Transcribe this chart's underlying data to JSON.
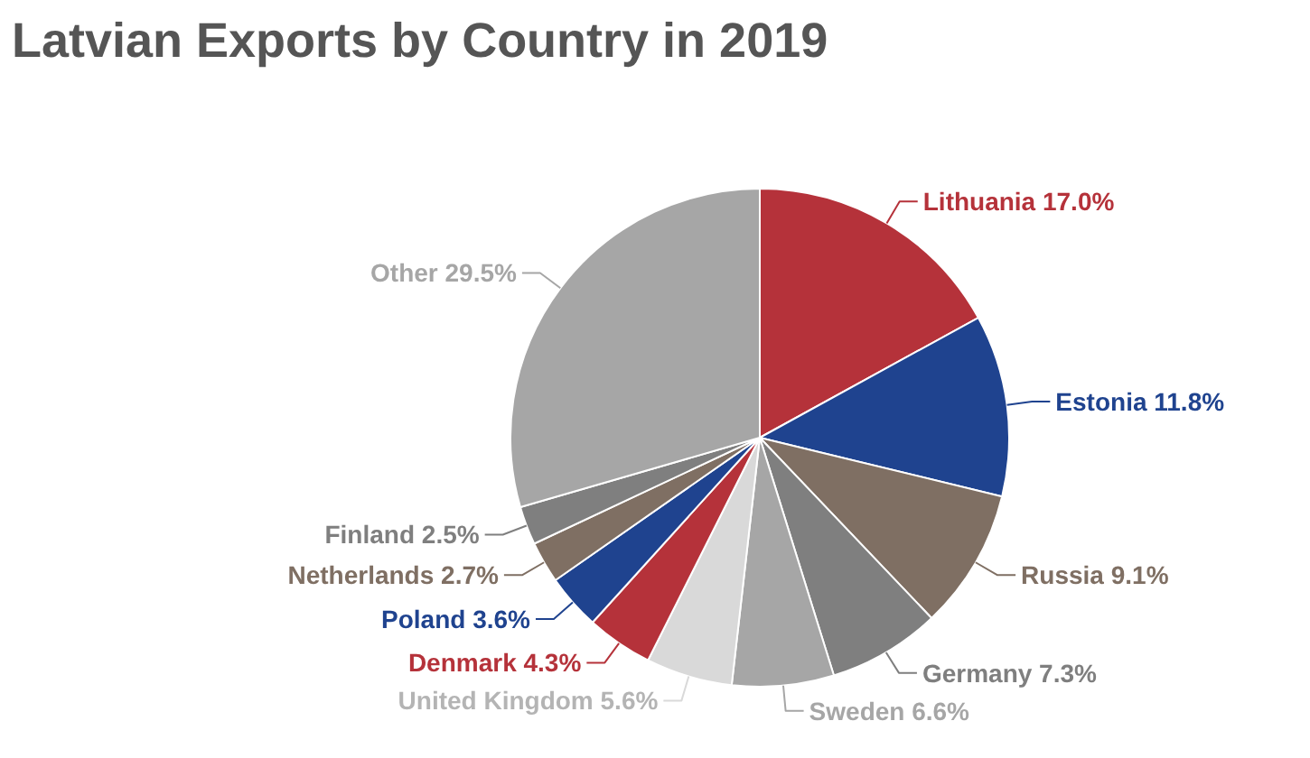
{
  "chart_data": {
    "type": "pie",
    "title": "Latvian Exports by Country in 2019",
    "categories": [
      "Lithuania",
      "Estonia",
      "Russia",
      "Germany",
      "Sweden",
      "United Kingdom",
      "Denmark",
      "Poland",
      "Netherlands",
      "Finland",
      "Other"
    ],
    "values": [
      17.0,
      11.8,
      9.1,
      7.3,
      6.6,
      5.6,
      4.3,
      3.6,
      2.7,
      2.5,
      29.5
    ],
    "value_labels": [
      "17.0%",
      "11.8%",
      "9.1%",
      "7.3%",
      "6.6%",
      "5.6%",
      "4.3%",
      "3.6%",
      "2.7%",
      "2.5%",
      "29.5%"
    ],
    "colors": [
      "#b5323a",
      "#1f438f",
      "#7f6f63",
      "#7f7f7f",
      "#a6a6a6",
      "#d9d9d9",
      "#b5323a",
      "#1f438f",
      "#7f6f63",
      "#7f7f7f",
      "#a6a6a6"
    ]
  }
}
